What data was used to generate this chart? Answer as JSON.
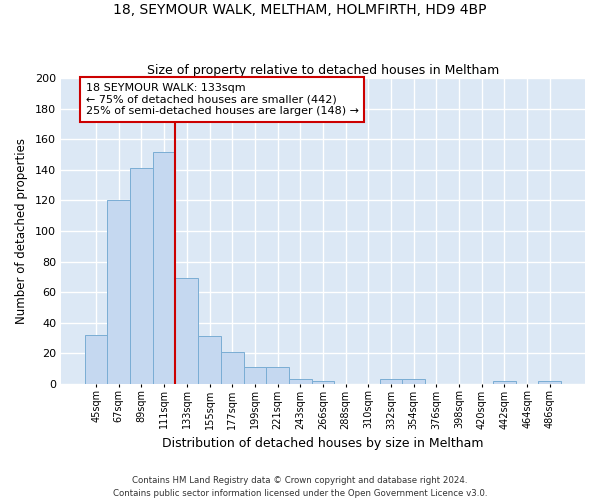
{
  "title1": "18, SEYMOUR WALK, MELTHAM, HOLMFIRTH, HD9 4BP",
  "title2": "Size of property relative to detached houses in Meltham",
  "xlabel": "Distribution of detached houses by size in Meltham",
  "ylabel": "Number of detached properties",
  "bin_labels": [
    "45sqm",
    "67sqm",
    "89sqm",
    "111sqm",
    "133sqm",
    "155sqm",
    "177sqm",
    "199sqm",
    "221sqm",
    "243sqm",
    "266sqm",
    "288sqm",
    "310sqm",
    "332sqm",
    "354sqm",
    "376sqm",
    "398sqm",
    "420sqm",
    "442sqm",
    "464sqm",
    "486sqm"
  ],
  "bar_values": [
    32,
    120,
    141,
    152,
    69,
    31,
    21,
    11,
    11,
    3,
    2,
    0,
    0,
    3,
    3,
    0,
    0,
    0,
    2,
    0,
    2
  ],
  "bar_color": "#c5d8f0",
  "bar_edge_color": "#7aadd4",
  "vline_color": "#cc0000",
  "annotation_text": "18 SEYMOUR WALK: 133sqm\n← 75% of detached houses are smaller (442)\n25% of semi-detached houses are larger (148) →",
  "annotation_box_color": "#ffffff",
  "annotation_box_edge": "#cc0000",
  "ylim": [
    0,
    200
  ],
  "yticks": [
    0,
    20,
    40,
    60,
    80,
    100,
    120,
    140,
    160,
    180,
    200
  ],
  "footer1": "Contains HM Land Registry data © Crown copyright and database right 2024.",
  "footer2": "Contains public sector information licensed under the Open Government Licence v3.0.",
  "bg_color": "#ffffff",
  "plot_bg_color": "#dce8f5"
}
